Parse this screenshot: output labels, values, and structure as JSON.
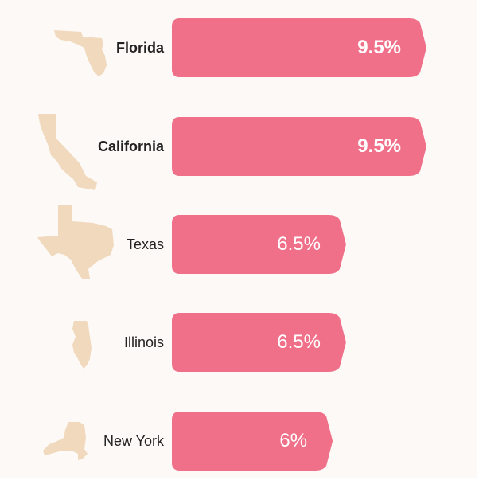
{
  "colors": {
    "background": "#fdf9f6",
    "bar": "#f07089",
    "shape": "#f1d9bd",
    "label": "#222222",
    "value_text": "#ffffff"
  },
  "chart_data": {
    "type": "bar",
    "orientation": "horizontal",
    "title": "",
    "xlabel": "",
    "ylabel": "",
    "xlim": [
      0,
      9.5
    ],
    "categories": [
      "Florida",
      "California",
      "Texas",
      "Illinois",
      "New York"
    ],
    "values": [
      9.5,
      9.5,
      6.5,
      6.5,
      6
    ],
    "value_labels": [
      "9.5%",
      "9.5%",
      "6.5%",
      "6.5%",
      "6%"
    ],
    "icons": [
      "florida-outline-icon",
      "california-outline-icon",
      "texas-outline-icon",
      "illinois-outline-icon",
      "new-york-outline-icon"
    ],
    "highlighted": [
      true,
      true,
      false,
      false,
      false
    ],
    "grid": false,
    "legend": "none"
  }
}
